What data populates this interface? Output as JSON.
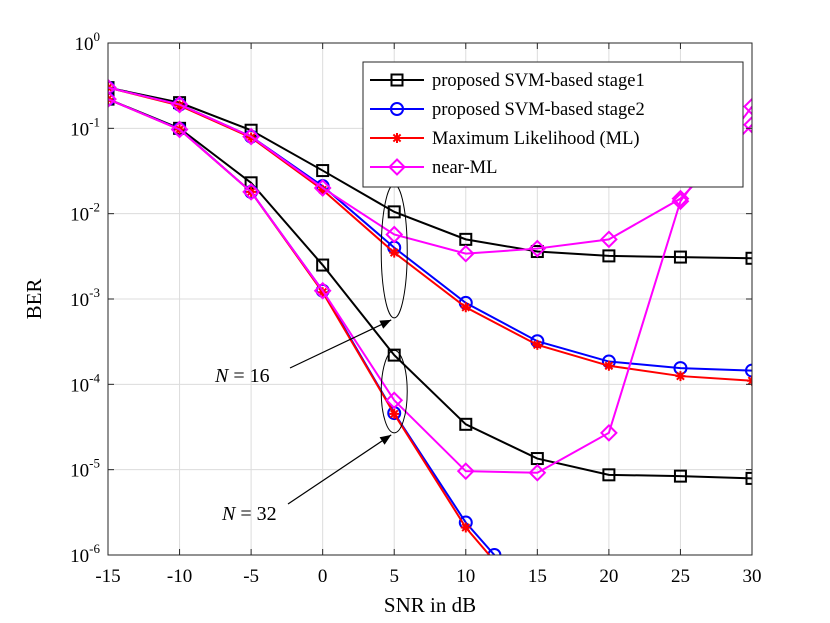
{
  "chart_data": {
    "type": "line",
    "title": "",
    "xlabel": "SNR in dB",
    "ylabel": "BER",
    "yscale": "log",
    "xlim": [
      -15,
      30
    ],
    "ylim": [
      1e-06,
      1
    ],
    "xticks": [
      -15,
      -10,
      -5,
      0,
      5,
      10,
      15,
      20,
      25,
      30
    ],
    "yticks": [
      {
        "value": 1e-06,
        "base": "10",
        "exp": "-6"
      },
      {
        "value": 1e-05,
        "base": "10",
        "exp": "-5"
      },
      {
        "value": 0.0001,
        "base": "10",
        "exp": "-4"
      },
      {
        "value": 0.001,
        "base": "10",
        "exp": "-3"
      },
      {
        "value": 0.01,
        "base": "10",
        "exp": "-2"
      },
      {
        "value": 0.1,
        "base": "10",
        "exp": "-1"
      },
      {
        "value": 1,
        "base": "10",
        "exp": "0"
      }
    ],
    "grid": true,
    "legend_position": "top-right",
    "series": [
      {
        "name": "proposed SVM-based stage1",
        "group": "N = 16",
        "color": "#000000",
        "marker": "square",
        "x": [
          -15,
          -10,
          -5,
          0,
          5,
          10,
          15,
          20,
          25,
          30
        ],
        "y": [
          0.3,
          0.2,
          0.095,
          0.032,
          0.0105,
          0.005,
          0.0036,
          0.0032,
          0.0031,
          0.003
        ]
      },
      {
        "name": "proposed SVM-based stage2",
        "group": "N = 16",
        "color": "#0000ff",
        "marker": "circle",
        "x": [
          -15,
          -10,
          -5,
          0,
          5,
          10,
          15,
          20,
          25,
          30
        ],
        "y": [
          0.3,
          0.19,
          0.08,
          0.021,
          0.004,
          0.0009,
          0.00032,
          0.000185,
          0.000155,
          0.000145
        ]
      },
      {
        "name": "Maximum Likelihood (ML)",
        "group": "N = 16",
        "color": "#ff0000",
        "marker": "asterisk",
        "x": [
          -15,
          -10,
          -5,
          0,
          5,
          10,
          15,
          20,
          25,
          30
        ],
        "y": [
          0.3,
          0.185,
          0.078,
          0.019,
          0.0035,
          0.0008,
          0.00029,
          0.000165,
          0.000125,
          0.00011
        ]
      },
      {
        "name": "near-ML",
        "group": "N = 16",
        "color": "#ff00ff",
        "marker": "diamond",
        "x": [
          -15,
          -10,
          -5,
          0,
          5,
          10,
          15,
          20,
          25,
          30
        ],
        "y": [
          0.3,
          0.19,
          0.08,
          0.02,
          0.0057,
          0.0034,
          0.0039,
          0.005,
          0.015,
          0.11
        ]
      },
      {
        "name": "proposed SVM-based stage1",
        "group": "N = 32",
        "color": "#000000",
        "marker": "square",
        "x": [
          -15,
          -10,
          -5,
          0,
          5,
          10,
          15,
          20,
          25,
          30
        ],
        "y": [
          0.22,
          0.1,
          0.023,
          0.0025,
          0.00022,
          3.4e-05,
          1.35e-05,
          8.7e-06,
          8.4e-06,
          7.9e-06
        ]
      },
      {
        "name": "proposed SVM-based stage2",
        "group": "N = 32",
        "color": "#0000ff",
        "marker": "circle",
        "x": [
          -15,
          -10,
          -5,
          0,
          5,
          10,
          12
        ],
        "y": [
          0.22,
          0.098,
          0.018,
          0.00125,
          4.6e-05,
          2.4e-06,
          1e-06
        ]
      },
      {
        "name": "Maximum Likelihood (ML)",
        "group": "N = 32",
        "color": "#ff0000",
        "marker": "asterisk",
        "x": [
          -15,
          -10,
          -5,
          0,
          5,
          10,
          12
        ],
        "y": [
          0.22,
          0.097,
          0.018,
          0.0012,
          4.5e-05,
          2.1e-06,
          8.5e-07
        ]
      },
      {
        "name": "near-ML",
        "group": "N = 32",
        "color": "#ff00ff",
        "marker": "diamond",
        "x": [
          -15,
          -10,
          -5,
          0,
          5,
          10,
          15,
          20,
          25,
          30
        ],
        "y": [
          0.22,
          0.097,
          0.018,
          0.00125,
          6.5e-05,
          9.6e-06,
          9.2e-06,
          2.7e-05,
          0.014,
          0.18
        ]
      }
    ],
    "legend": [
      {
        "label": "proposed SVM-based stage1",
        "color": "#000000",
        "marker": "square"
      },
      {
        "label": "proposed SVM-based stage2",
        "color": "#0000ff",
        "marker": "circle"
      },
      {
        "label": "Maximum Likelihood (ML)",
        "color": "#ff0000",
        "marker": "asterisk"
      },
      {
        "label": "near-ML",
        "color": "#ff00ff",
        "marker": "diamond"
      }
    ],
    "annotations": [
      {
        "name": "N = 16",
        "var": "N",
        "rest": " = 16",
        "target_x": 5,
        "target_y": 0.0045
      },
      {
        "name": "N = 32",
        "var": "N",
        "rest": " = 32",
        "target_x": 5,
        "target_y": 5e-05
      }
    ]
  }
}
